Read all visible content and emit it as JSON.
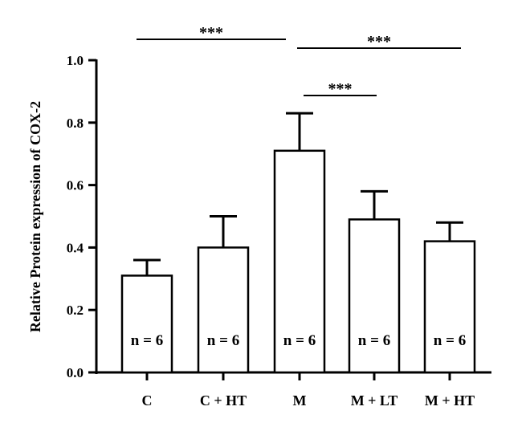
{
  "chart_data": {
    "type": "bar",
    "ylabel": "Relative Protein expression of COX-2",
    "xlabel": "",
    "ylim": [
      0,
      1.0
    ],
    "yticks": [
      "0.0",
      "0.2",
      "0.4",
      "0.6",
      "0.8",
      "1.0"
    ],
    "categories": [
      "C",
      "C + HT",
      "M",
      "M + LT",
      "M + HT"
    ],
    "values": [
      0.31,
      0.4,
      0.71,
      0.49,
      0.42
    ],
    "errors": [
      0.05,
      0.1,
      0.12,
      0.09,
      0.06
    ],
    "n_labels": [
      "n = 6",
      "n = 6",
      "n = 6",
      "n = 6",
      "n = 6"
    ],
    "bar_color": "#ffffff",
    "edge_color": "#000000",
    "grid": false,
    "significance": [
      {
        "from": "C",
        "to": "M",
        "label": "***"
      },
      {
        "from": "M",
        "to": "M + HT",
        "label": "***"
      },
      {
        "from": "M",
        "to": "M + LT",
        "label": "***"
      }
    ]
  }
}
